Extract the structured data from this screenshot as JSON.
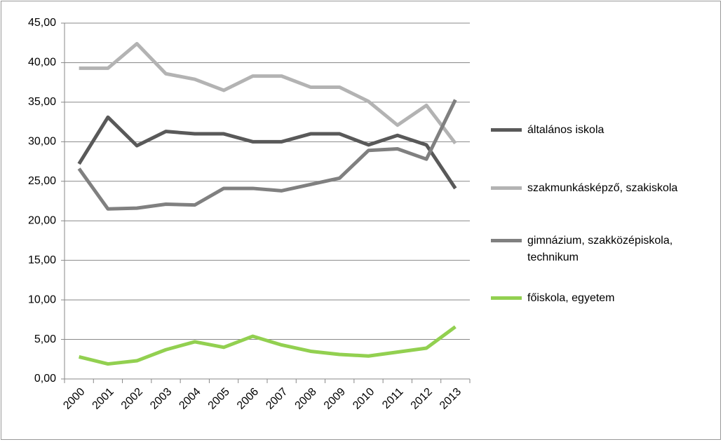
{
  "chart_data": {
    "type": "line",
    "categories": [
      "2000",
      "2001",
      "2002",
      "2003",
      "2004",
      "2005",
      "2006",
      "2007",
      "2008",
      "2009",
      "2010",
      "2011",
      "2012",
      "2013"
    ],
    "series": [
      {
        "name": "általános iskola",
        "color": "#595959",
        "values": [
          27.2,
          33.1,
          29.5,
          31.3,
          31.0,
          31.0,
          30.0,
          30.0,
          31.0,
          31.0,
          29.6,
          30.8,
          29.6,
          24.1
        ]
      },
      {
        "name": "szakmunkásképző, szakiskola",
        "color": "#b3b3b3",
        "values": [
          39.3,
          39.3,
          42.4,
          38.6,
          37.9,
          36.5,
          38.3,
          38.3,
          36.9,
          36.9,
          35.1,
          32.1,
          34.6,
          29.8
        ]
      },
      {
        "name": "gimnázium, szakközépiskola, technikum",
        "color": "#808080",
        "values": [
          26.6,
          21.5,
          21.6,
          22.1,
          22.0,
          24.1,
          24.1,
          23.8,
          24.6,
          25.4,
          28.9,
          29.1,
          27.8,
          35.3
        ]
      },
      {
        "name": "főiskola, egyetem",
        "color": "#92d050",
        "values": [
          2.8,
          1.9,
          2.3,
          3.7,
          4.7,
          4.0,
          5.4,
          4.3,
          3.5,
          3.1,
          2.9,
          3.4,
          3.9,
          6.6
        ]
      }
    ],
    "ylim": [
      0,
      45
    ],
    "yticks": [
      {
        "value": 0,
        "label": "0,00"
      },
      {
        "value": 5,
        "label": "5,00"
      },
      {
        "value": 10,
        "label": "10,00"
      },
      {
        "value": 15,
        "label": "15,00"
      },
      {
        "value": 20,
        "label": "20,00"
      },
      {
        "value": 25,
        "label": "25,00"
      },
      {
        "value": 30,
        "label": "30,00"
      },
      {
        "value": 35,
        "label": "35,00"
      },
      {
        "value": 40,
        "label": "40,00"
      },
      {
        "value": 45,
        "label": "45,00"
      }
    ],
    "grid": true
  }
}
